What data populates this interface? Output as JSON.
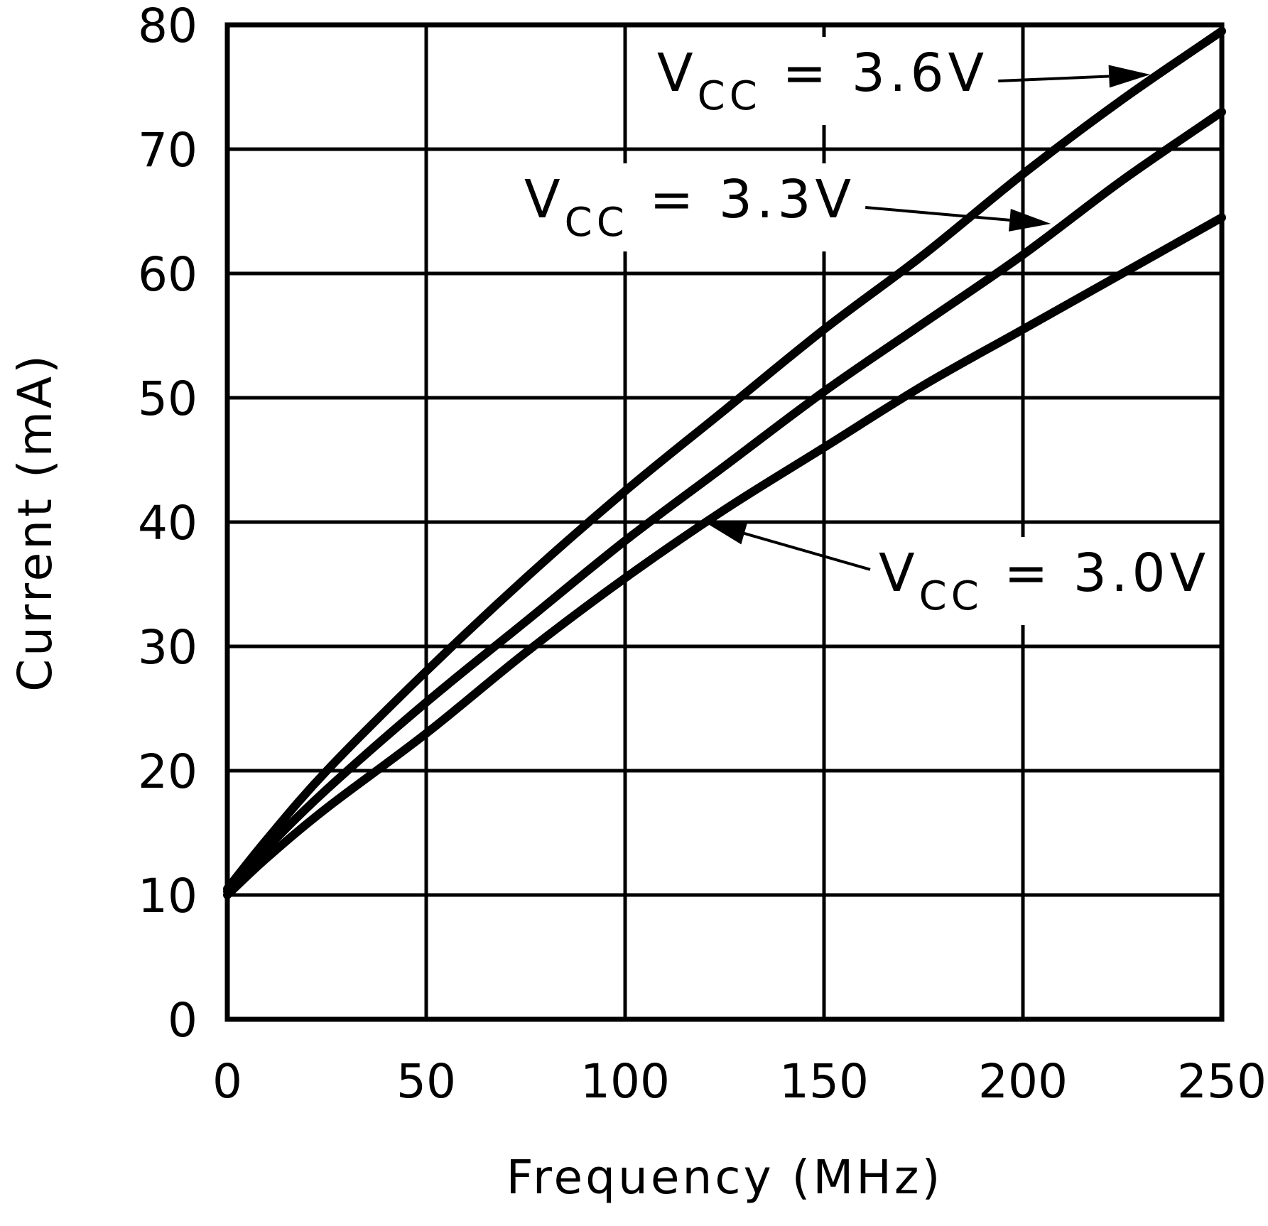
{
  "chart_data": {
    "type": "line",
    "title": "",
    "xlabel": "Frequency (MHz)",
    "ylabel": "Current (mA)",
    "xlim": [
      0,
      250
    ],
    "ylim": [
      0,
      80
    ],
    "xticks": [
      0,
      50,
      100,
      150,
      200,
      250
    ],
    "yticks": [
      0,
      10,
      20,
      30,
      40,
      50,
      60,
      70,
      80
    ],
    "grid": true,
    "series": [
      {
        "name": "VCC = 3.6V",
        "x": [
          0,
          10,
          25,
          50,
          75,
          100,
          125,
          150,
          175,
          200,
          225,
          250
        ],
        "y": [
          10.5,
          14.5,
          20,
          28,
          35.5,
          42.5,
          49,
          55.5,
          61.5,
          68,
          74,
          79.5
        ]
      },
      {
        "name": "VCC = 3.3V",
        "x": [
          0,
          10,
          25,
          50,
          75,
          100,
          125,
          150,
          175,
          200,
          225,
          250
        ],
        "y": [
          10.3,
          13.8,
          18.5,
          25.5,
          32,
          38.5,
          44.5,
          50.5,
          56,
          61.5,
          67.5,
          73
        ]
      },
      {
        "name": "VCC = 3.0V",
        "x": [
          0,
          10,
          25,
          50,
          75,
          100,
          125,
          150,
          175,
          200,
          225,
          250
        ],
        "y": [
          10,
          13,
          17,
          23,
          29.5,
          35.5,
          41,
          46,
          51,
          55.5,
          60,
          64.5
        ]
      }
    ],
    "annotations": [
      {
        "base": "V",
        "sub": "CC",
        "rest": " = 3.6V",
        "target_series": "VCC = 3.6V",
        "target": [
          232,
          76
        ]
      },
      {
        "base": "V",
        "sub": "CC",
        "rest": " = 3.3V",
        "target_series": "VCC = 3.3V",
        "target": [
          207,
          64
        ]
      },
      {
        "base": "V",
        "sub": "CC",
        "rest": " = 3.0V",
        "target_series": "VCC = 3.0V",
        "target": [
          120,
          40
        ]
      }
    ]
  }
}
